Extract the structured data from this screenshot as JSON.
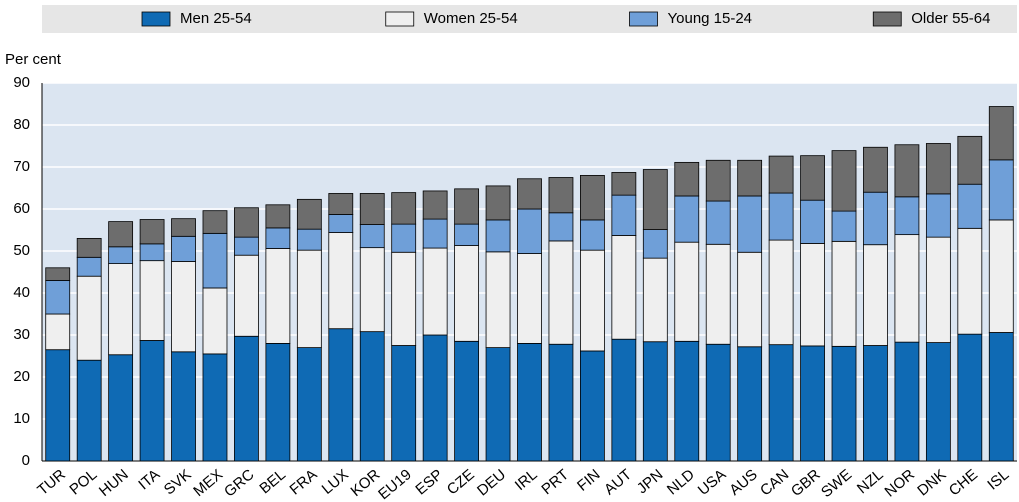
{
  "chart_data": {
    "type": "stacked_bar",
    "y_label": "Per cent",
    "categories": [
      "TUR",
      "POL",
      "HUN",
      "ITA",
      "SVK",
      "MEX",
      "GRC",
      "BEL",
      "FRA",
      "LUX",
      "KOR",
      "EU19",
      "ESP",
      "CZE",
      "DEU",
      "IRL",
      "PRT",
      "FIN",
      "AUT",
      "JPN",
      "NLD",
      "USA",
      "AUS",
      "CAN",
      "GBR",
      "SWE",
      "NZL",
      "NOR",
      "DNK",
      "CHE",
      "ISL"
    ],
    "series": [
      {
        "name": "Men 25-54",
        "color": "#0f6ab4",
        "values": [
          26.5,
          24,
          25.3,
          28.7,
          26,
          25.5,
          29.7,
          28,
          27,
          31.5,
          30.8,
          27.5,
          30,
          28.5,
          27,
          28,
          27.8,
          26.2,
          29,
          28.4,
          28.5,
          27.8,
          27.2,
          27.7,
          27.4,
          27.3,
          27.5,
          28.3,
          28.2,
          30.2,
          30.6
        ]
      },
      {
        "name": "Women 25-54",
        "color": "#efefef",
        "values": [
          8.5,
          20,
          21.7,
          19,
          21.5,
          15.7,
          19.3,
          22.6,
          23.2,
          22.9,
          20,
          22.2,
          20.7,
          22.8,
          22.8,
          21.4,
          24.6,
          24,
          24.7,
          19.9,
          23.6,
          23.8,
          22.5,
          24.9,
          24.4,
          25,
          24,
          25.6,
          25.1,
          25.2,
          26.8
        ]
      },
      {
        "name": "Young 15-24",
        "color": "#6f9fd8",
        "values": [
          8,
          4.5,
          4,
          4,
          6,
          13,
          4.3,
          4.9,
          5,
          4.3,
          5.5,
          6.7,
          6.9,
          5.1,
          7.6,
          10.6,
          6.7,
          7.2,
          9.6,
          6.8,
          11,
          10.3,
          13.4,
          11.2,
          10.3,
          7.2,
          12.5,
          9,
          10.3,
          10.5,
          14.3
        ]
      },
      {
        "name": "Older 55-64",
        "color": "#6d6d6d",
        "values": [
          3,
          4.5,
          6,
          5.8,
          4.2,
          5.4,
          7,
          5.5,
          7.1,
          5,
          7.4,
          7.5,
          6.7,
          8.4,
          8.1,
          7.2,
          8.4,
          10.6,
          5.4,
          14.3,
          8,
          9.7,
          8.5,
          8.8,
          10.6,
          14.4,
          10.7,
          12.4,
          12,
          11.4,
          12.7
        ]
      }
    ],
    "ylim": [
      0,
      90
    ],
    "yticks": [
      0,
      10,
      20,
      30,
      40,
      50,
      60,
      70,
      80,
      90
    ],
    "grid": true,
    "legend": "top"
  }
}
